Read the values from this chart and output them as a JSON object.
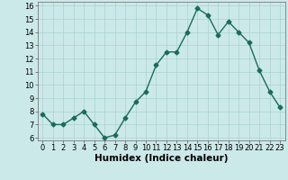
{
  "x": [
    0,
    1,
    2,
    3,
    4,
    5,
    6,
    7,
    8,
    9,
    10,
    11,
    12,
    13,
    14,
    15,
    16,
    17,
    18,
    19,
    20,
    21,
    22,
    23
  ],
  "y": [
    7.8,
    7.0,
    7.0,
    7.5,
    8.0,
    7.0,
    6.0,
    6.2,
    7.5,
    8.7,
    9.5,
    11.5,
    12.5,
    12.5,
    14.0,
    15.8,
    15.3,
    13.8,
    14.8,
    14.0,
    13.2,
    11.1,
    9.5,
    8.3
  ],
  "xlabel": "Humidex (Indice chaleur)",
  "ylim_min": 5.8,
  "ylim_max": 16.3,
  "xlim_min": -0.5,
  "xlim_max": 23.5,
  "yticks": [
    6,
    7,
    8,
    9,
    10,
    11,
    12,
    13,
    14,
    15,
    16
  ],
  "xticks": [
    0,
    1,
    2,
    3,
    4,
    5,
    6,
    7,
    8,
    9,
    10,
    11,
    12,
    13,
    14,
    15,
    16,
    17,
    18,
    19,
    20,
    21,
    22,
    23
  ],
  "xtick_labels": [
    "0",
    "1",
    "2",
    "3",
    "4",
    "5",
    "6",
    "7",
    "8",
    "9",
    "10",
    "11",
    "12",
    "13",
    "14",
    "15",
    "16",
    "17",
    "18",
    "19",
    "20",
    "21",
    "22",
    "23"
  ],
  "line_color": "#1a6b5a",
  "marker": "D",
  "marker_size": 2.5,
  "line_width": 1.0,
  "bg_color": "#cce9ea",
  "grid_color": "#afd4d5",
  "axes_bg": "#cce9ea",
  "tick_fontsize": 6.0,
  "xlabel_fontsize": 7.5
}
